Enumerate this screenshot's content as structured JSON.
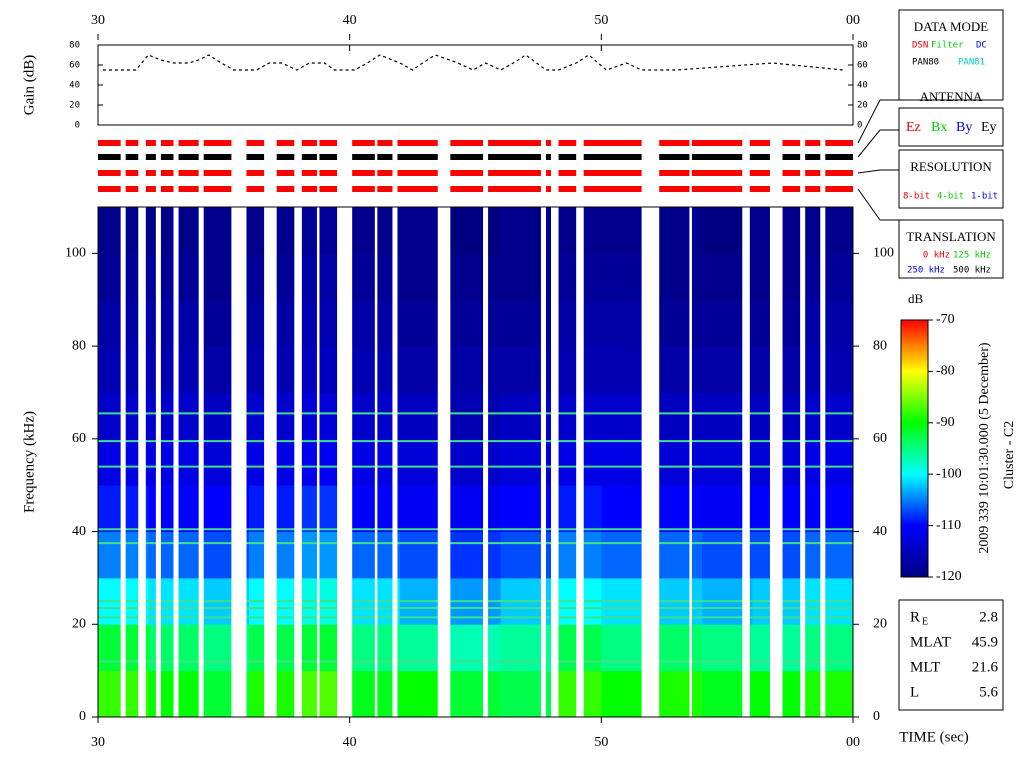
{
  "chart_data": [
    {
      "type": "line",
      "ylabel": "Gain (dB)",
      "xlim": [
        30,
        60
      ],
      "ylim": [
        0,
        80
      ],
      "yticks": [
        0,
        20,
        40,
        60,
        80
      ],
      "xticks": [
        30,
        40,
        50,
        {
          "value": 60,
          "label": "00"
        }
      ],
      "x": [
        30.2,
        31.5,
        32.0,
        32.5,
        33.0,
        33.6,
        34.0,
        34.4,
        34.9,
        35.4,
        36.3,
        36.8,
        37.3,
        37.9,
        38.4,
        39.0,
        39.4,
        40.2,
        40.7,
        41.2,
        42.0,
        42.5,
        42.9,
        43.4,
        44.3,
        44.9,
        45.4,
        46.0,
        46.5,
        47.0,
        47.8,
        48.3,
        49.0,
        49.5,
        50.2,
        51.0,
        51.6,
        53.0,
        56.8,
        59.6
      ],
      "series": [
        {
          "color": "#000000",
          "values": [
            55,
            55,
            70,
            65,
            62,
            62,
            65,
            70,
            62,
            55,
            55,
            62,
            62,
            55,
            62,
            62,
            55,
            55,
            62,
            70,
            62,
            55,
            62,
            70,
            62,
            55,
            62,
            55,
            62,
            70,
            55,
            55,
            62,
            70,
            55,
            62,
            55,
            55,
            62,
            55
          ]
        }
      ]
    },
    {
      "type": "heatmap",
      "ylabel": "Frequency (kHz)",
      "xlabel": "TIME (sec)",
      "xlim": [
        30,
        60
      ],
      "ylim": [
        0,
        110
      ],
      "xticks": [
        30,
        40,
        50,
        {
          "value": 60,
          "label": "00"
        }
      ],
      "yticks": [
        0,
        20,
        40,
        60,
        80,
        100
      ],
      "x": [
        30,
        32,
        34,
        36,
        38,
        40,
        42,
        44,
        46,
        48,
        50,
        52,
        54,
        56,
        58
      ],
      "y": [
        0,
        10,
        20,
        30,
        40,
        50,
        60,
        70,
        80,
        90,
        100
      ],
      "dx": 2,
      "dy": 10,
      "values": [
        [
          -88,
          -90,
          -92,
          -89,
          -87,
          -91,
          -90,
          -92,
          -93,
          -88,
          -90,
          -89,
          -91,
          -90,
          -89
        ],
        [
          -92,
          -94,
          -95,
          -93,
          -92,
          -95,
          -96,
          -97,
          -96,
          -93,
          -95,
          -94,
          -95,
          -96,
          -95
        ],
        [
          -100,
          -101,
          -102,
          -100,
          -99,
          -101,
          -103,
          -104,
          -102,
          -100,
          -101,
          -102,
          -103,
          -102,
          -101
        ],
        [
          -105,
          -106,
          -107,
          -105,
          -104,
          -106,
          -107,
          -108,
          -107,
          -105,
          -106,
          -106,
          -107,
          -107,
          -106
        ],
        [
          -109,
          -110,
          -110,
          -109,
          -108,
          -110,
          -111,
          -111,
          -110,
          -109,
          -110,
          -110,
          -111,
          -110,
          -110
        ],
        [
          -112,
          -112,
          -113,
          -112,
          -111,
          -112,
          -113,
          -114,
          -113,
          -112,
          -112,
          -113,
          -113,
          -113,
          -112
        ],
        [
          -114,
          -114,
          -115,
          -114,
          -113,
          -114,
          -115,
          -116,
          -115,
          -114,
          -114,
          -115,
          -115,
          -115,
          -114
        ],
        [
          -116,
          -116,
          -117,
          -116,
          -115,
          -116,
          -117,
          -117,
          -117,
          -116,
          -116,
          -117,
          -117,
          -117,
          -116
        ],
        [
          -117,
          -117,
          -118,
          -117,
          -116,
          -117,
          -118,
          -118,
          -118,
          -117,
          -117,
          -118,
          -118,
          -118,
          -117
        ],
        [
          -118,
          -118,
          -119,
          -118,
          -117,
          -118,
          -119,
          -119,
          -119,
          -118,
          -118,
          -119,
          -119,
          -119,
          -118
        ],
        [
          -119,
          -119,
          -119,
          -119,
          -118,
          -119,
          -119,
          -120,
          -119,
          -119,
          -119,
          -119,
          -120,
          -119,
          -119
        ]
      ],
      "tone_lines": [
        65.5,
        59.5,
        54,
        40.5,
        37.5,
        25,
        23.5,
        21.5,
        12
      ],
      "gaps": [
        [
          30.9,
          31.1
        ],
        [
          31.6,
          31.9
        ],
        [
          32.3,
          32.5
        ],
        [
          33.0,
          33.2
        ],
        [
          34.0,
          34.2
        ],
        [
          35.3,
          35.9
        ],
        [
          36.6,
          37.1
        ],
        [
          37.8,
          38.1
        ],
        [
          38.7,
          38.8
        ],
        [
          39.5,
          40.1
        ],
        [
          41.0,
          41.1
        ],
        [
          41.7,
          41.9
        ],
        [
          43.5,
          44.0
        ],
        [
          45.3,
          45.5
        ],
        [
          47.6,
          47.8
        ],
        [
          48.0,
          48.3
        ],
        [
          49.0,
          49.3
        ],
        [
          51.6,
          52.3
        ],
        [
          53.5,
          53.6
        ],
        [
          55.6,
          55.9
        ],
        [
          56.7,
          57.2
        ],
        [
          57.9,
          58.1
        ],
        [
          58.7,
          58.9
        ]
      ],
      "colorbar": {
        "label": "dB",
        "clim": [
          -120,
          -70
        ],
        "ticks": [
          -70,
          -80,
          -90,
          -100,
          -110,
          -120
        ],
        "colormap": [
          "#000080",
          "#0000ff",
          "#00ffff",
          "#00ff00",
          "#ffff00",
          "#ff0000"
        ]
      },
      "side_text": [
        "2009 339 10:01:30.000 (5 December)",
        "Cluster - C2"
      ]
    }
  ],
  "data_mode": {
    "title": "DATA MODE",
    "items": [
      "DSN",
      "Filter",
      "DC",
      "PAN80",
      "PAN81"
    ]
  },
  "antenna": {
    "title": "ANTENNA",
    "items": [
      "Ez",
      "Bx",
      "By",
      "Ey"
    ]
  },
  "resolution": {
    "title": "RESOLUTION",
    "items": [
      "8-bit",
      "4-bit",
      "1-bit"
    ]
  },
  "translation": {
    "title": "TRANSLATION",
    "items": [
      "0 kHz",
      "125 kHz",
      "250 kHz",
      "500 kHz"
    ]
  },
  "info": [
    {
      "label": "R",
      "sub": "E",
      "value": "2.8"
    },
    {
      "label": "MLAT",
      "value": "45.9"
    },
    {
      "label": "MLT",
      "value": "21.6"
    },
    {
      "label": "L",
      "value": "5.6"
    }
  ]
}
